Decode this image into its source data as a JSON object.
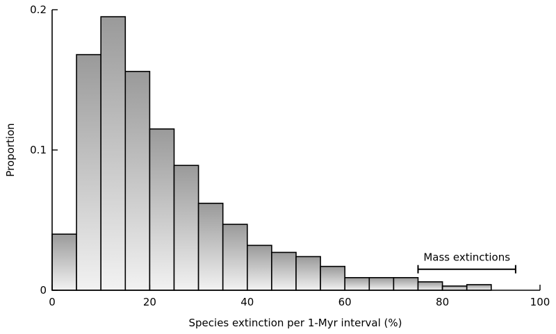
{
  "chart_data": {
    "type": "bar",
    "subtype": "histogram",
    "bin_width": 5,
    "bin_starts": [
      0,
      5,
      10,
      15,
      20,
      25,
      30,
      35,
      40,
      45,
      50,
      55,
      60,
      65,
      70,
      75,
      80,
      85
    ],
    "values": [
      0.04,
      0.168,
      0.195,
      0.156,
      0.115,
      0.089,
      0.062,
      0.047,
      0.032,
      0.027,
      0.024,
      0.017,
      0.009,
      0.009,
      0.009,
      0.006,
      0.003,
      0.004
    ],
    "xlabel": "Species extinction per 1-Myr interval (%)",
    "ylabel": "Proportion",
    "xlim": [
      0,
      100
    ],
    "ylim": [
      0,
      0.2
    ],
    "x_ticks": [
      0,
      20,
      40,
      60,
      80,
      100
    ],
    "x_tick_labels": [
      "0",
      "20",
      "40",
      "60",
      "80",
      "100"
    ],
    "y_ticks": [
      0,
      0.1,
      0.2
    ],
    "y_tick_labels": [
      "0",
      "0.1",
      "0.2"
    ],
    "grid": false,
    "bar_fill_top": "#9a9a9a",
    "bar_fill_bottom": "#f2f2f2",
    "annotation": {
      "text": "Mass extinctions",
      "x_start": 75,
      "x_end": 95,
      "y": 0.015
    }
  }
}
